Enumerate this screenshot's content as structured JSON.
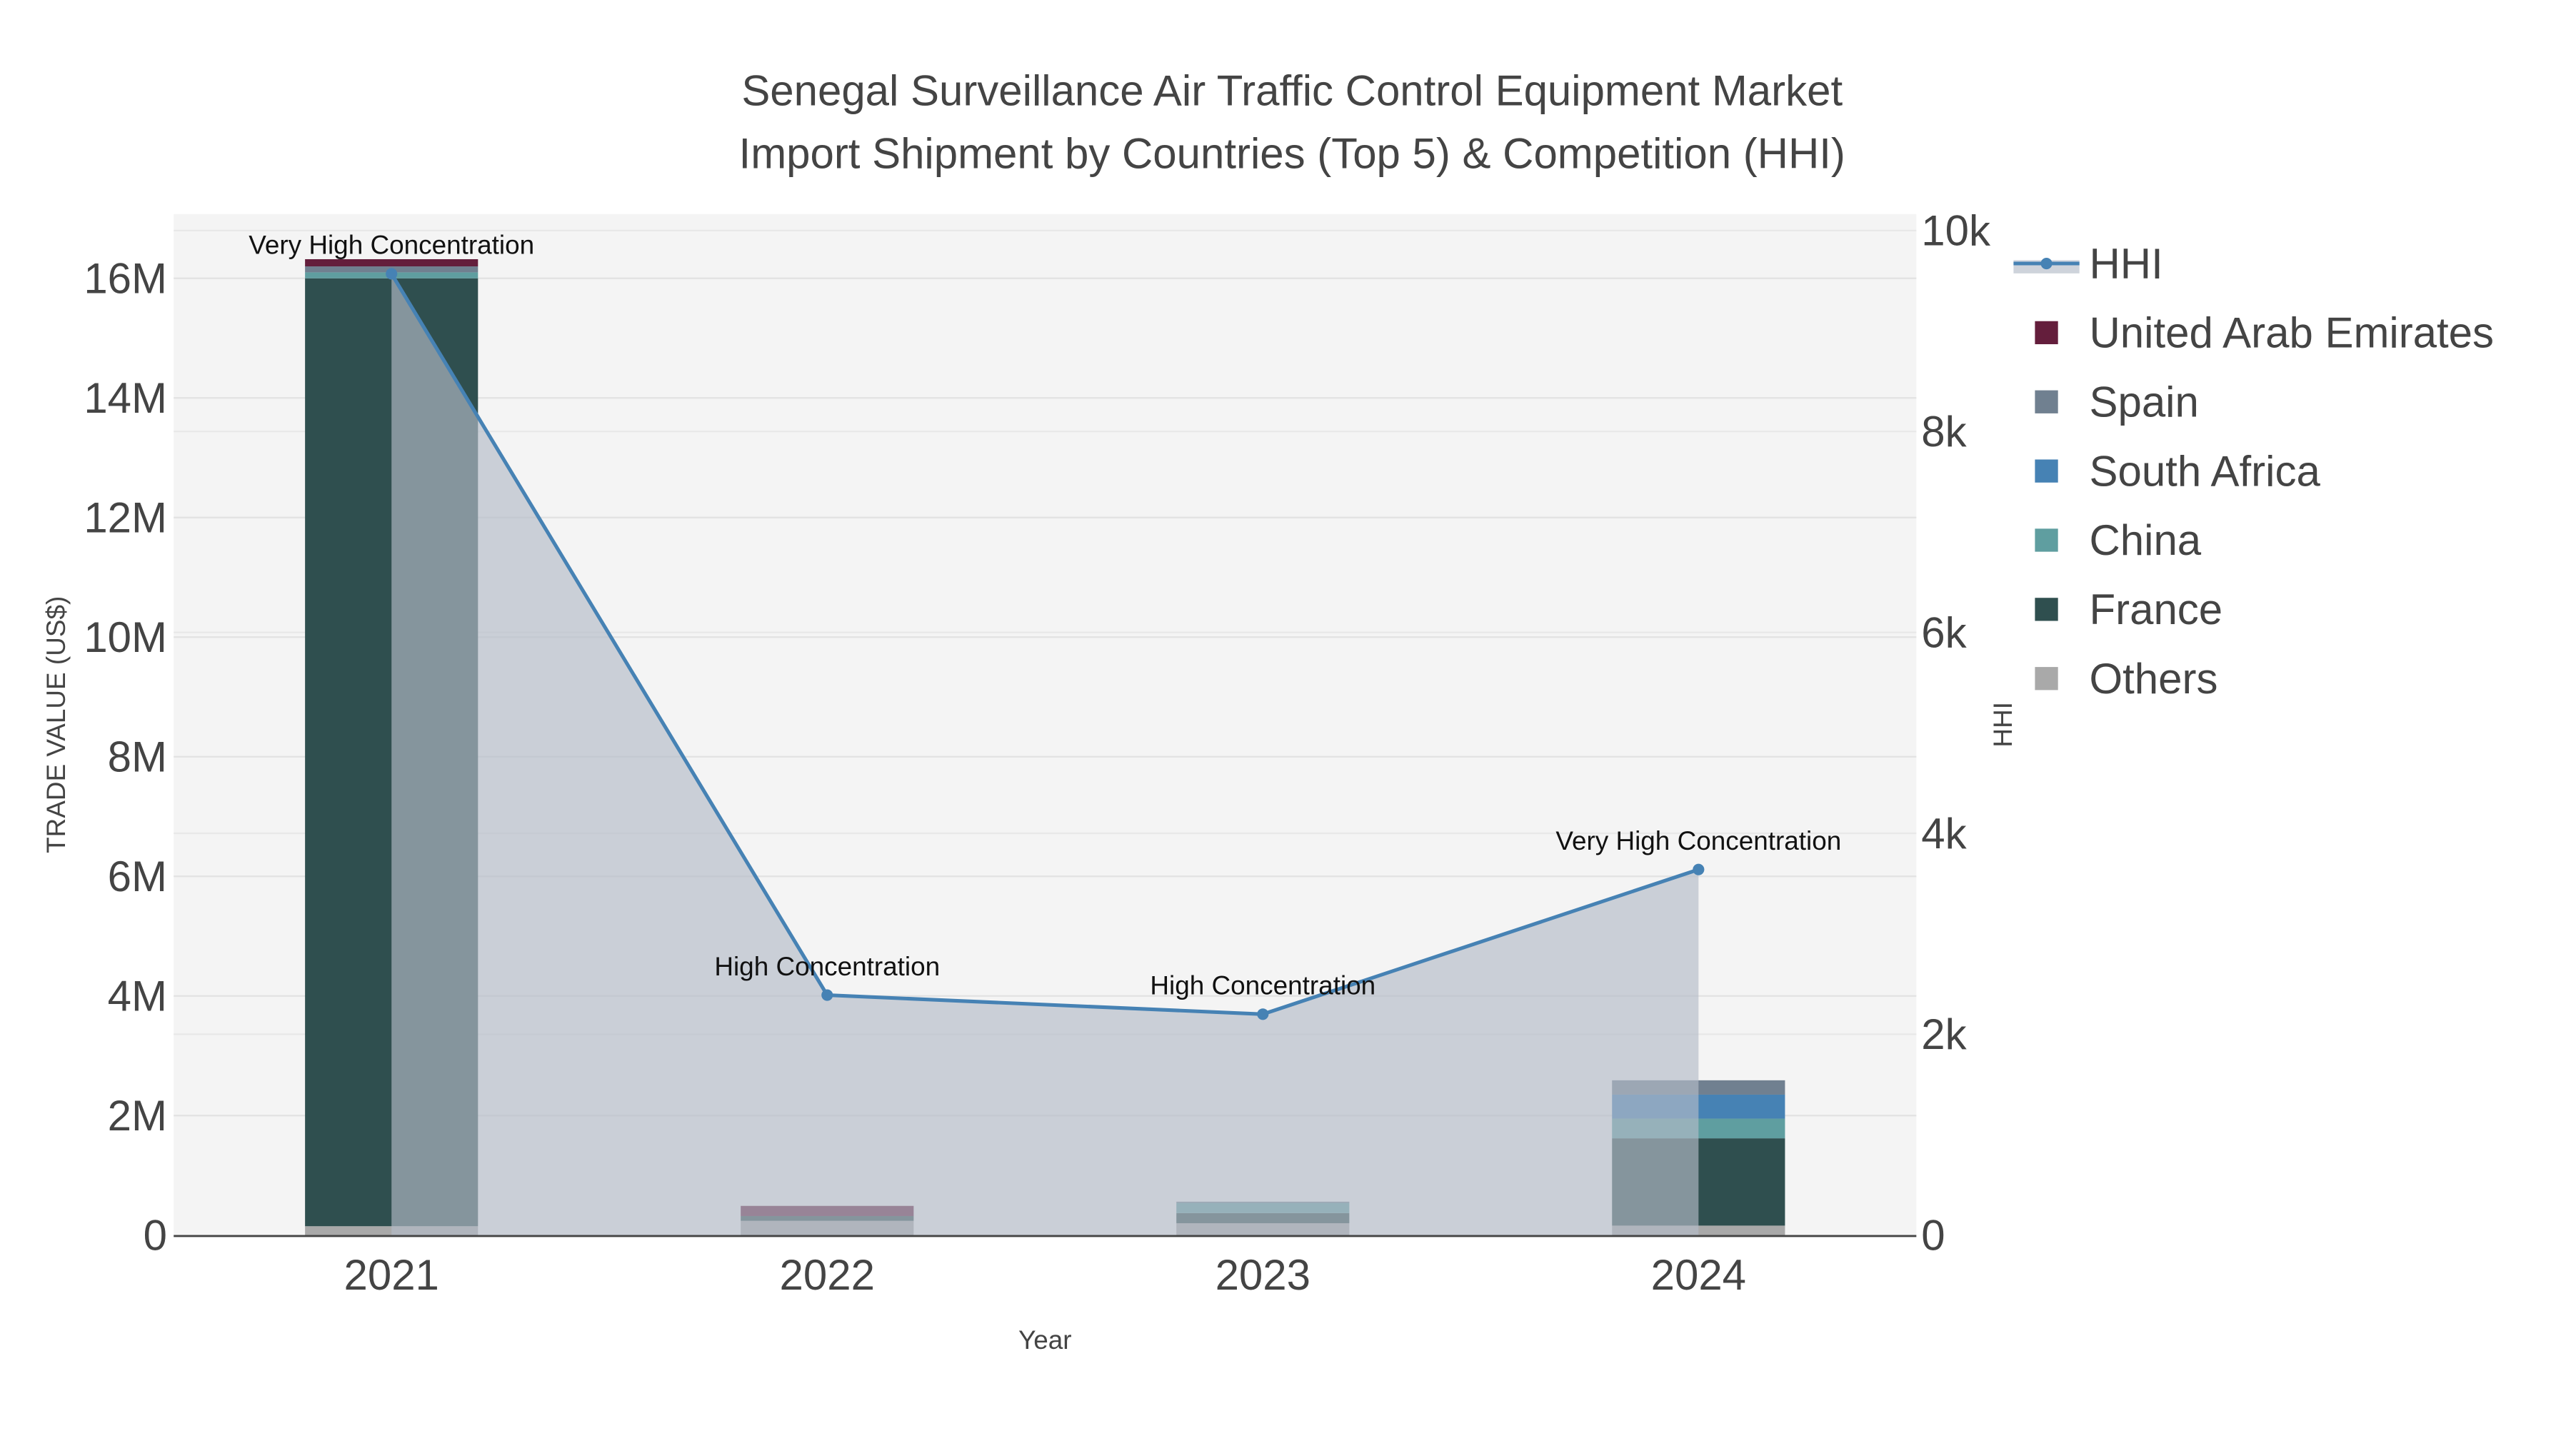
{
  "chart_data": {
    "type": "bar",
    "title": "Senegal Surveillance Air Traffic Control Equipment Market",
    "subtitle": "Import Shipment by Countries (Top 5) & Competition (HHI)",
    "xlabel": "Year",
    "ylabel": "TRADE VALUE (US$)",
    "y2label": "HHI",
    "categories": [
      "2021",
      "2022",
      "2023",
      "2024"
    ],
    "ylim": [
      0,
      17000000
    ],
    "y2lim": [
      0,
      10000
    ],
    "yticks": [
      {
        "v": 0,
        "label": "0"
      },
      {
        "v": 2000000,
        "label": "2M"
      },
      {
        "v": 4000000,
        "label": "4M"
      },
      {
        "v": 6000000,
        "label": "6M"
      },
      {
        "v": 8000000,
        "label": "8M"
      },
      {
        "v": 10000000,
        "label": "10M"
      },
      {
        "v": 12000000,
        "label": "12M"
      },
      {
        "v": 14000000,
        "label": "14M"
      },
      {
        "v": 16000000,
        "label": "16M"
      }
    ],
    "y2ticks": [
      {
        "v": 0,
        "label": "0"
      },
      {
        "v": 2000,
        "label": "2k"
      },
      {
        "v": 4000,
        "label": "4k"
      },
      {
        "v": 6000,
        "label": "6k"
      },
      {
        "v": 8000,
        "label": "8k"
      },
      {
        "v": 10000,
        "label": "10k"
      }
    ],
    "series": [
      {
        "name": "Others",
        "color": "#a9a9a9",
        "values": [
          150000,
          240000,
          200000,
          160000
        ]
      },
      {
        "name": "France",
        "color": "#2f4f4f",
        "values": [
          15850000,
          80000,
          170000,
          1460000
        ]
      },
      {
        "name": "China",
        "color": "#5f9ea0",
        "values": [
          100000,
          0,
          170000,
          330000
        ]
      },
      {
        "name": "South Africa",
        "color": "#4682b4",
        "values": [
          0,
          0,
          0,
          400000
        ]
      },
      {
        "name": "Spain",
        "color": "#708090",
        "values": [
          100000,
          0,
          20000,
          240000
        ]
      },
      {
        "name": "United Arab Emirates",
        "color": "#641e3c",
        "values": [
          120000,
          170000,
          0,
          0
        ]
      }
    ],
    "hhi": {
      "name": "HHI",
      "color": "#4682b4",
      "values": [
        9570,
        2390,
        2200,
        3640
      ],
      "annotations": [
        "Very High Concentration",
        "High Concentration",
        "High Concentration",
        "Very High Concentration"
      ]
    },
    "legend_order": [
      "HHI",
      "United Arab Emirates",
      "Spain",
      "South Africa",
      "China",
      "France",
      "Others"
    ],
    "legend_position": "right",
    "grid": true
  }
}
